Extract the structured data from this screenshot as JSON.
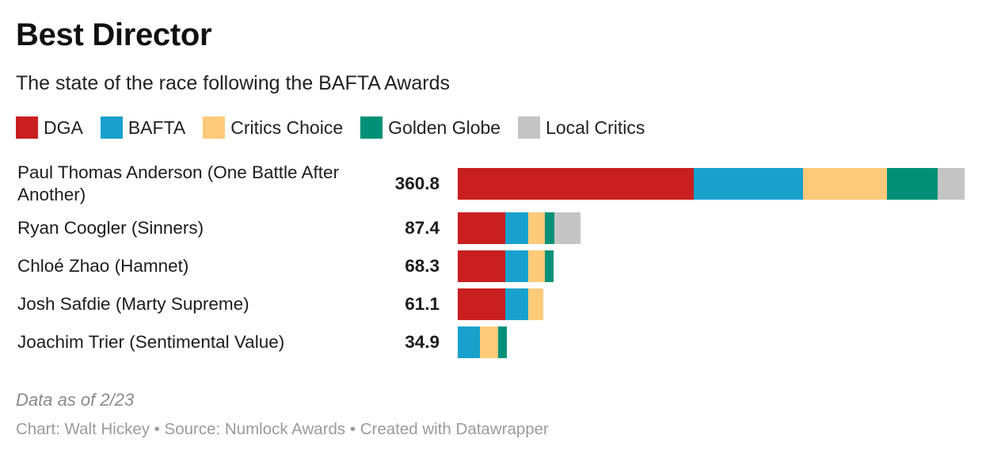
{
  "title": "Best Director",
  "subtitle": "The state of the race following the BAFTA Awards",
  "note": "Data as of 2/23",
  "footer": "Chart: Walt Hickey • Source: Numlock Awards • Created with Datawrapper",
  "chart_data": {
    "type": "bar",
    "orientation": "horizontal",
    "stacked": true,
    "title": "Best Director",
    "subtitle": "The state of the race following the BAFTA Awards",
    "categories": [
      "Paul Thomas Anderson (One Battle After Another)",
      "Ryan Coogler (Sinners)",
      "Chloé Zhao (Hamnet)",
      "Josh Safdie (Marty Supreme)",
      "Joachim Trier (Sentimental Value)"
    ],
    "totals": [
      "360.8",
      "87.4",
      "68.3",
      "61.1",
      "34.9"
    ],
    "series": [
      {
        "name": "DGA",
        "color": "#c91f1f",
        "values": [
          168,
          34,
          34,
          34,
          0
        ]
      },
      {
        "name": "BAFTA",
        "color": "#18a1cd",
        "values": [
          78,
          16,
          16,
          16,
          16
        ]
      },
      {
        "name": "Critics Choice",
        "color": "#fdca7a",
        "values": [
          59.8,
          12,
          12,
          11.1,
          12.5
        ]
      },
      {
        "name": "Golden Globe",
        "color": "#009178",
        "values": [
          36,
          6.8,
          6.3,
          0,
          6.4
        ]
      },
      {
        "name": "Local Critics",
        "color": "#c4c4c4",
        "values": [
          19,
          18.6,
          0,
          0,
          0
        ]
      }
    ],
    "xlim": [
      0,
      360.8
    ],
    "legend_position": "top-left",
    "grid": false
  }
}
